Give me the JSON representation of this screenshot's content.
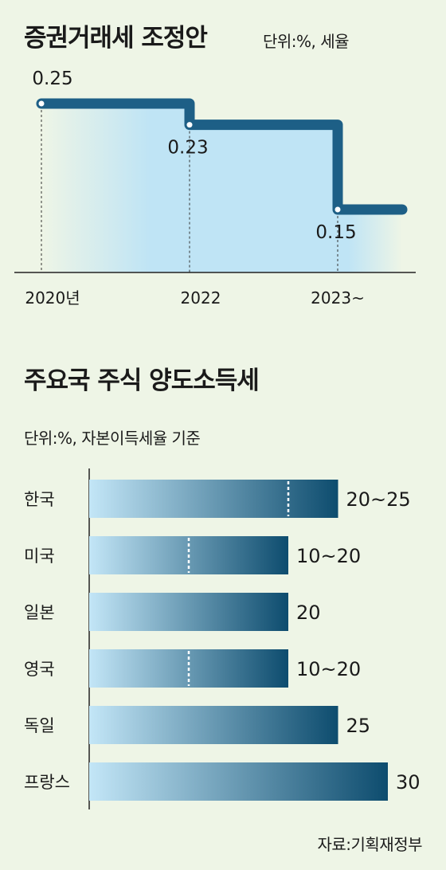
{
  "chart_data": [
    {
      "type": "line",
      "title": "증권거래세 조정안",
      "unit_label": "단위:%, 세율",
      "categories": [
        "2020년",
        "2022",
        "2023~"
      ],
      "values": [
        0.25,
        0.23,
        0.15
      ],
      "value_labels": [
        "0.25",
        "0.23",
        "0.15"
      ],
      "colors": {
        "line": "#1d5f86",
        "fill": "#bfe4f5"
      }
    },
    {
      "type": "bar",
      "title": "주요국 주식 양도소득세",
      "unit_label": "단위:%, 자본이득세율 기준",
      "categories": [
        "한국",
        "미국",
        "일본",
        "영국",
        "독일",
        "프랑스"
      ],
      "series": [
        {
          "min": [
            20,
            10,
            20,
            10,
            25,
            30
          ],
          "max": [
            25,
            20,
            20,
            20,
            25,
            30
          ]
        }
      ],
      "value_labels": [
        "20~25",
        "10~20",
        "20",
        "10~20",
        "25",
        "30"
      ],
      "colors": {
        "bar_start": "#c3e6f7",
        "bar_end": "#0d4c6e"
      }
    }
  ],
  "source": "자료:기획재정부"
}
